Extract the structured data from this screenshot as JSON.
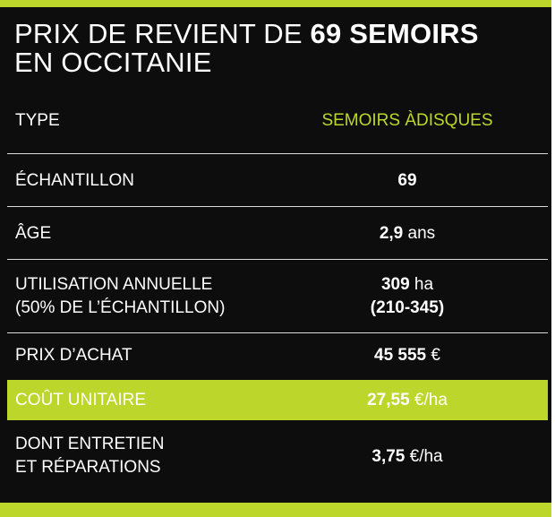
{
  "title": {
    "line1_prefix": "PRIX DE REVIENT DE ",
    "line1_bold": "69 SEMOIRS",
    "line2": "EN OCCITANIE"
  },
  "header": {
    "label": "TYPE",
    "value": "SEMOIRS ÀDISQUES"
  },
  "rows": {
    "echantillon": {
      "label": "ÉCHANTILLON",
      "value": "69"
    },
    "age": {
      "label": "ÂGE",
      "value": "2,9",
      "unit": " ans"
    },
    "utilisation": {
      "label_line1": "UTILISATION ANNUELLE",
      "label_line2": "(50% DE L’ÉCHANTILLON)",
      "value": "309",
      "unit": " ha",
      "range": "(210-345)"
    },
    "prix": {
      "label": "PRIX D’ACHAT",
      "value": "45 555",
      "unit": " €"
    },
    "cout": {
      "label": "COÛT UNITAIRE",
      "value": "27,55",
      "unit": " €/ha"
    },
    "entretien": {
      "label_line1": "DONT ENTRETIEN",
      "label_line2": "ET RÉPARATIONS",
      "value": "3,75",
      "unit": " €/ha"
    }
  },
  "colors": {
    "accent": "#bdd62b",
    "background": "#0d0d0d",
    "text": "#ffffff"
  }
}
